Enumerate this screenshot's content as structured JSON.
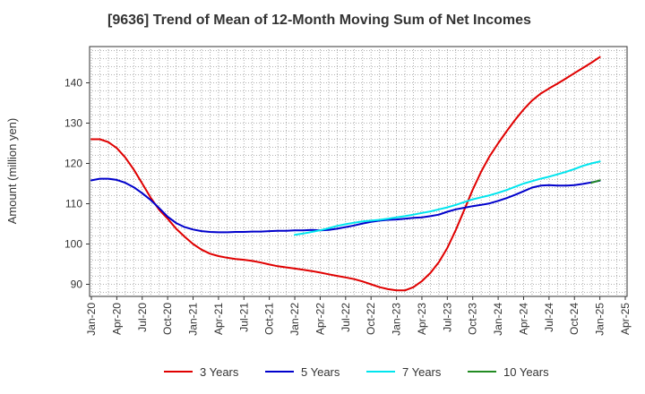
{
  "chart_data": {
    "type": "line",
    "title": "[9636]  Trend of Mean of 12-Month Moving Sum of Net Incomes",
    "ylabel": "Amount (million yen)",
    "xlabel": "",
    "ylim": [
      87,
      149
    ],
    "yticks": [
      90,
      100,
      110,
      120,
      130,
      140
    ],
    "xticks": [
      "Jan-20",
      "Apr-20",
      "Jul-20",
      "Oct-20",
      "Jan-21",
      "Apr-21",
      "Jul-21",
      "Oct-21",
      "Jan-22",
      "Apr-22",
      "Jul-22",
      "Oct-22",
      "Jan-23",
      "Apr-23",
      "Jul-23",
      "Oct-23",
      "Jan-24",
      "Apr-24",
      "Jul-24",
      "Oct-24",
      "Jan-25",
      "Apr-25"
    ],
    "grid": true,
    "legend_position": "bottom",
    "series": [
      {
        "name": "3 Years",
        "color": "#e00000",
        "points": [
          [
            "Jan-20",
            126.0
          ],
          [
            "Feb-20",
            126.0
          ],
          [
            "Mar-20",
            125.3
          ],
          [
            "Apr-20",
            123.8
          ],
          [
            "May-20",
            121.5
          ],
          [
            "Jun-20",
            118.5
          ],
          [
            "Jul-20",
            115.0
          ],
          [
            "Aug-20",
            111.5
          ],
          [
            "Sep-20",
            108.5
          ],
          [
            "Oct-20",
            106.3
          ],
          [
            "Nov-20",
            103.8
          ],
          [
            "Dec-20",
            101.8
          ],
          [
            "Jan-21",
            100.0
          ],
          [
            "Feb-21",
            98.6
          ],
          [
            "Mar-21",
            97.6
          ],
          [
            "Apr-21",
            97.0
          ],
          [
            "May-21",
            96.6
          ],
          [
            "Jun-21",
            96.3
          ],
          [
            "Jul-21",
            96.1
          ],
          [
            "Aug-21",
            95.8
          ],
          [
            "Sep-21",
            95.4
          ],
          [
            "Oct-21",
            94.9
          ],
          [
            "Nov-21",
            94.5
          ],
          [
            "Dec-21",
            94.2
          ],
          [
            "Jan-22",
            93.9
          ],
          [
            "Feb-22",
            93.6
          ],
          [
            "Mar-22",
            93.3
          ],
          [
            "Apr-22",
            92.9
          ],
          [
            "May-22",
            92.5
          ],
          [
            "Jun-22",
            92.1
          ],
          [
            "Jul-22",
            91.7
          ],
          [
            "Aug-22",
            91.3
          ],
          [
            "Sep-22",
            90.7
          ],
          [
            "Oct-22",
            90.0
          ],
          [
            "Nov-22",
            89.3
          ],
          [
            "Dec-22",
            88.8
          ],
          [
            "Jan-23",
            88.5
          ],
          [
            "Feb-23",
            88.5
          ],
          [
            "Mar-23",
            89.3
          ],
          [
            "Apr-23",
            90.8
          ],
          [
            "May-23",
            92.8
          ],
          [
            "Jun-23",
            95.5
          ],
          [
            "Jul-23",
            99.0
          ],
          [
            "Aug-23",
            103.5
          ],
          [
            "Sep-23",
            108.5
          ],
          [
            "Oct-23",
            113.5
          ],
          [
            "Nov-23",
            118.0
          ],
          [
            "Dec-23",
            121.8
          ],
          [
            "Jan-24",
            125.0
          ],
          [
            "Feb-24",
            128.0
          ],
          [
            "Mar-24",
            130.8
          ],
          [
            "Apr-24",
            133.4
          ],
          [
            "May-24",
            135.6
          ],
          [
            "Jun-24",
            137.3
          ],
          [
            "Jul-24",
            138.6
          ],
          [
            "Aug-24",
            139.8
          ],
          [
            "Sep-24",
            141.1
          ],
          [
            "Oct-24",
            142.4
          ],
          [
            "Nov-24",
            143.7
          ],
          [
            "Dec-24",
            145.0
          ],
          [
            "Jan-25",
            146.4
          ]
        ]
      },
      {
        "name": "5 Years",
        "color": "#0000cc",
        "points": [
          [
            "Jan-20",
            115.8
          ],
          [
            "Feb-20",
            116.2
          ],
          [
            "Mar-20",
            116.2
          ],
          [
            "Apr-20",
            115.9
          ],
          [
            "May-20",
            115.2
          ],
          [
            "Jun-20",
            114.1
          ],
          [
            "Jul-20",
            112.6
          ],
          [
            "Aug-20",
            110.9
          ],
          [
            "Sep-20",
            108.9
          ],
          [
            "Oct-20",
            106.8
          ],
          [
            "Nov-20",
            105.2
          ],
          [
            "Dec-20",
            104.2
          ],
          [
            "Jan-21",
            103.6
          ],
          [
            "Feb-21",
            103.2
          ],
          [
            "Mar-21",
            103.0
          ],
          [
            "Apr-21",
            102.9
          ],
          [
            "May-21",
            102.9
          ],
          [
            "Jun-21",
            103.0
          ],
          [
            "Jul-21",
            103.0
          ],
          [
            "Aug-21",
            103.1
          ],
          [
            "Sep-21",
            103.1
          ],
          [
            "Oct-21",
            103.2
          ],
          [
            "Nov-21",
            103.3
          ],
          [
            "Dec-21",
            103.3
          ],
          [
            "Jan-22",
            103.4
          ],
          [
            "Feb-22",
            103.4
          ],
          [
            "Mar-22",
            103.5
          ],
          [
            "Apr-22",
            103.4
          ],
          [
            "May-22",
            103.5
          ],
          [
            "Jun-22",
            103.8
          ],
          [
            "Jul-22",
            104.2
          ],
          [
            "Aug-22",
            104.6
          ],
          [
            "Sep-22",
            105.1
          ],
          [
            "Oct-22",
            105.5
          ],
          [
            "Nov-22",
            105.8
          ],
          [
            "Dec-22",
            106.0
          ],
          [
            "Jan-23",
            106.1
          ],
          [
            "Feb-23",
            106.3
          ],
          [
            "Mar-23",
            106.5
          ],
          [
            "Apr-23",
            106.6
          ],
          [
            "May-23",
            106.9
          ],
          [
            "Jun-23",
            107.3
          ],
          [
            "Jul-23",
            108.0
          ],
          [
            "Aug-23",
            108.6
          ],
          [
            "Sep-23",
            109.0
          ],
          [
            "Oct-23",
            109.4
          ],
          [
            "Nov-23",
            109.7
          ],
          [
            "Dec-23",
            110.1
          ],
          [
            "Jan-24",
            110.7
          ],
          [
            "Feb-24",
            111.4
          ],
          [
            "Mar-24",
            112.2
          ],
          [
            "Apr-24",
            113.1
          ],
          [
            "May-24",
            114.0
          ],
          [
            "Jun-24",
            114.5
          ],
          [
            "Jul-24",
            114.6
          ],
          [
            "Aug-24",
            114.5
          ],
          [
            "Sep-24",
            114.5
          ],
          [
            "Oct-24",
            114.6
          ],
          [
            "Nov-24",
            114.9
          ],
          [
            "Dec-24",
            115.3
          ],
          [
            "Jan-25",
            115.7
          ]
        ]
      },
      {
        "name": "7 Years",
        "color": "#00e5ee",
        "points": [
          [
            "Jan-22",
            102.3
          ],
          [
            "Feb-22",
            102.6
          ],
          [
            "Mar-22",
            103.0
          ],
          [
            "Apr-22",
            103.4
          ],
          [
            "May-22",
            103.9
          ],
          [
            "Jun-22",
            104.5
          ],
          [
            "Jul-22",
            104.9
          ],
          [
            "Aug-22",
            105.3
          ],
          [
            "Sep-22",
            105.6
          ],
          [
            "Oct-22",
            105.8
          ],
          [
            "Nov-22",
            106.0
          ],
          [
            "Dec-22",
            106.3
          ],
          [
            "Jan-23",
            106.6
          ],
          [
            "Feb-23",
            106.9
          ],
          [
            "Mar-23",
            107.3
          ],
          [
            "Apr-23",
            107.7
          ],
          [
            "May-23",
            108.1
          ],
          [
            "Jun-23",
            108.6
          ],
          [
            "Jul-23",
            109.1
          ],
          [
            "Aug-23",
            109.7
          ],
          [
            "Sep-23",
            110.4
          ],
          [
            "Oct-23",
            111.1
          ],
          [
            "Nov-23",
            111.6
          ],
          [
            "Dec-23",
            112.1
          ],
          [
            "Jan-24",
            112.7
          ],
          [
            "Feb-24",
            113.4
          ],
          [
            "Mar-24",
            114.2
          ],
          [
            "Apr-24",
            115.0
          ],
          [
            "May-24",
            115.6
          ],
          [
            "Jun-24",
            116.2
          ],
          [
            "Jul-24",
            116.7
          ],
          [
            "Aug-24",
            117.3
          ],
          [
            "Sep-24",
            117.9
          ],
          [
            "Oct-24",
            118.6
          ],
          [
            "Nov-24",
            119.4
          ],
          [
            "Dec-24",
            120.0
          ],
          [
            "Jan-25",
            120.5
          ]
        ]
      },
      {
        "name": "10 Years",
        "color": "#228b22",
        "points": [
          [
            "Dec-24",
            115.2
          ],
          [
            "Jan-25",
            115.8
          ]
        ]
      }
    ]
  }
}
